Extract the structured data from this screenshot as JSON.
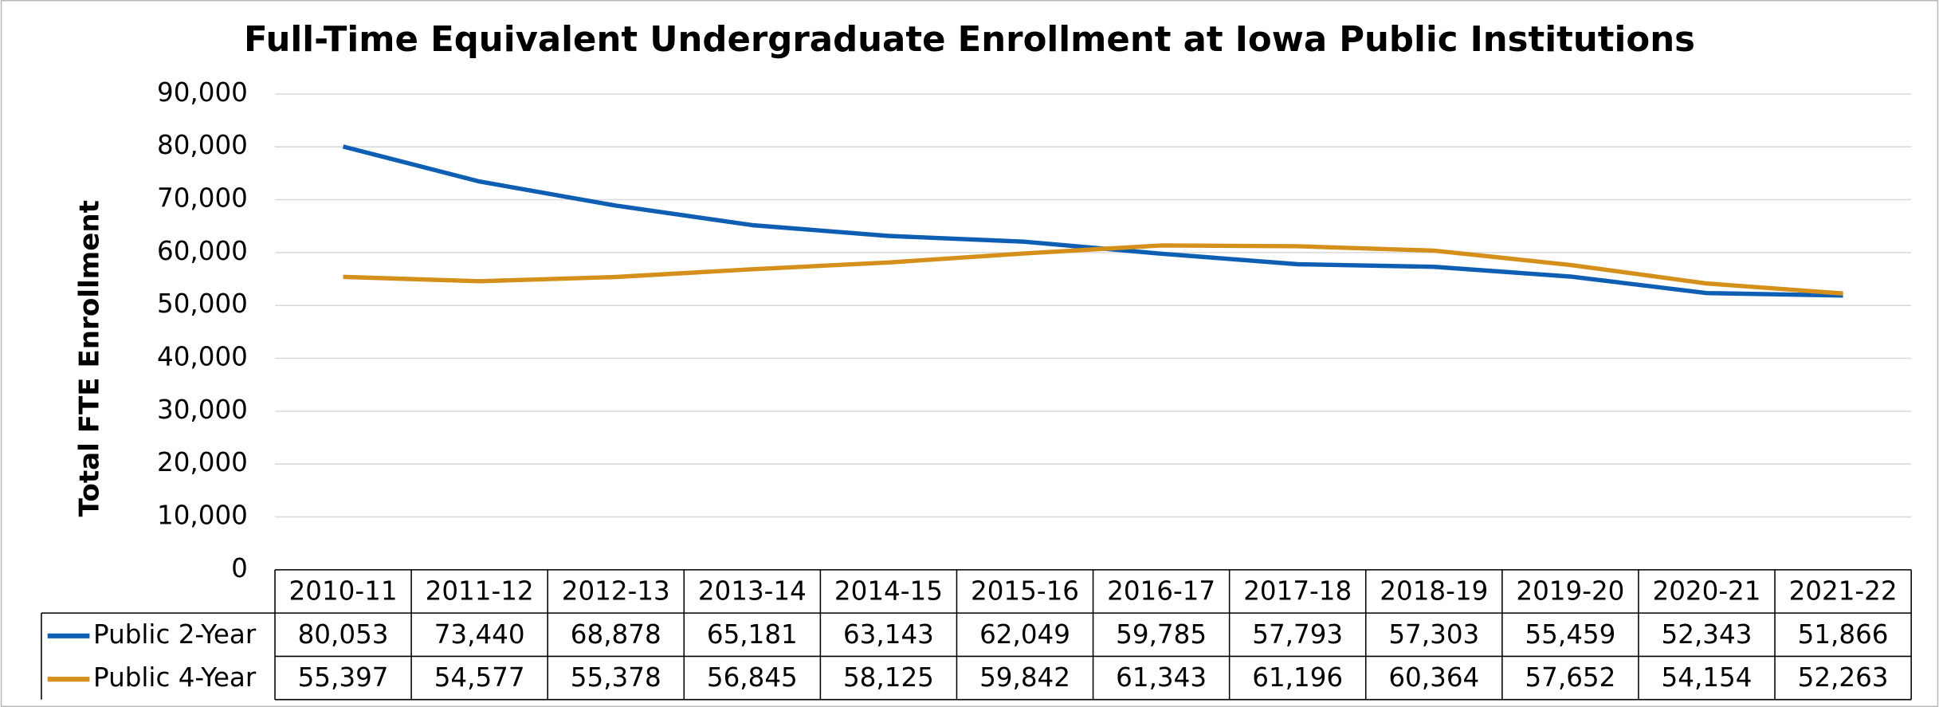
{
  "chart_data": {
    "type": "line",
    "title": "Full-Time Equivalent Undergraduate Enrollment at Iowa Public Institutions",
    "y_label": "Total FTE Enrollment",
    "categories": [
      "2010-11",
      "2011-12",
      "2012-13",
      "2013-14",
      "2014-15",
      "2015-16",
      "2016-17",
      "2017-18",
      "2018-19",
      "2019-20",
      "2020-21",
      "2021-22"
    ],
    "series": [
      {
        "name": "Public 2-Year",
        "color": "#0e5fb3",
        "values": [
          80053,
          73440,
          68878,
          65181,
          63143,
          62049,
          59785,
          57793,
          57303,
          55459,
          52343,
          51866
        ],
        "value_labels": [
          "80,053",
          "73,440",
          "68,878",
          "65,181",
          "63,143",
          "62,049",
          "59,785",
          "57,793",
          "57,303",
          "55,459",
          "52,343",
          "51,866"
        ]
      },
      {
        "name": "Public 4-Year",
        "color": "#d4901a",
        "values": [
          55397,
          54577,
          55378,
          56845,
          58125,
          59842,
          61343,
          61196,
          60364,
          57652,
          54154,
          52263
        ],
        "value_labels": [
          "55,397",
          "54,577",
          "55,378",
          "56,845",
          "58,125",
          "59,842",
          "61,343",
          "61,196",
          "60,364",
          "57,652",
          "54,154",
          "52,263"
        ]
      }
    ],
    "ylim": [
      0,
      90000
    ],
    "yticks": [
      0,
      {
        "value": 10000,
        "label": "10,000"
      },
      {
        "value": 20000,
        "label": "20,000"
      },
      {
        "value": 30000,
        "label": "30,000"
      },
      {
        "value": 40000,
        "label": "40,000"
      },
      {
        "value": 50000,
        "label": "50,000"
      },
      {
        "value": 60000,
        "label": "60,000"
      },
      {
        "value": 70000,
        "label": "70,000"
      },
      {
        "value": 80000,
        "label": "80,000"
      },
      {
        "value": 90000,
        "label": "90,000"
      }
    ],
    "grid": true
  }
}
